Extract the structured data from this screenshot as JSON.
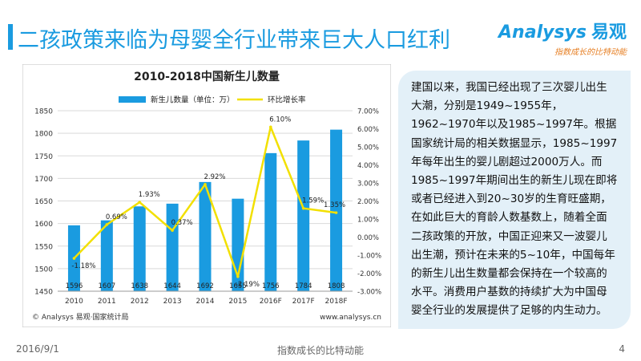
{
  "header": {
    "title": "二孩政策来临为母婴全行业带来巨大人口红利",
    "logo_text": "Analysys",
    "logo_cn": "易观",
    "logo_tagline": "指数成长的比特动能"
  },
  "chart_data": {
    "type": "bar",
    "title": "2010-2018中国新生儿数量",
    "categories": [
      "2010",
      "2011",
      "2012",
      "2013",
      "2014",
      "2015",
      "2016F",
      "2017F",
      "2018F"
    ],
    "series": [
      {
        "name": "新生儿数量（单位：万）",
        "type": "bar",
        "axis": "left",
        "values": [
          1596,
          1607,
          1638,
          1644,
          1692,
          1655,
          1756,
          1784,
          1808
        ],
        "labels": [
          "1596",
          "1607",
          "1638",
          "1644",
          "1692",
          "1655",
          "1756",
          "1784",
          "1808"
        ]
      },
      {
        "name": "环比增长率",
        "type": "line",
        "axis": "right",
        "values": [
          -1.18,
          0.69,
          1.93,
          0.37,
          2.92,
          -2.19,
          6.1,
          1.59,
          1.35
        ],
        "labels": [
          "-1.18%",
          "0.69%",
          "1.93%",
          "0.37%",
          "2.92%",
          "-2.19%",
          "6.10%",
          "1.59%",
          "1.35%"
        ]
      }
    ],
    "ylim": [
      1450,
      1850
    ],
    "y_ticks": [
      "1450",
      "1500",
      "1550",
      "1600",
      "1650",
      "1700",
      "1750",
      "1800",
      "1850"
    ],
    "y2lim": [
      -3,
      7
    ],
    "y2_ticks": [
      "-3.00%",
      "-2.00%",
      "-1.00%",
      "0.00%",
      "1.00%",
      "2.00%",
      "3.00%",
      "4.00%",
      "5.00%",
      "6.00%",
      "7.00%"
    ],
    "grid": true,
    "legend": "top",
    "source": "© Analysys 易观·国家统计局",
    "site": "www.analysys.cn",
    "colors": {
      "bar": "#1a9be0",
      "line": "#f2e000",
      "grid": "#d9d9d9",
      "axis_text": "#333333"
    }
  },
  "panel": {
    "text": "建国以来，我国已经出现了三次婴儿出生大潮，分别是1949~1955年，1962~1970年以及1985~1997年。根据国家统计局的相关数据显示，1985~1997年每年出生的婴儿剧超过2000万人。而1985~1997年期间出生的新生儿现在即将或者已经进入到20~30岁的生育旺盛期，在如此巨大的育龄人数基数上，随着全面二孩政策的开放，中国正迎来又一波婴儿出生潮，预计在未来的5~10年，中国每年的新生儿出生数量都会保持在一个较高的水平。消费用户基数的持续扩大为中国母婴全行业的发展提供了足够的内生动力。"
  },
  "footer": {
    "date": "2016/9/1",
    "center": "指数成长的比特动能",
    "page": "4"
  }
}
